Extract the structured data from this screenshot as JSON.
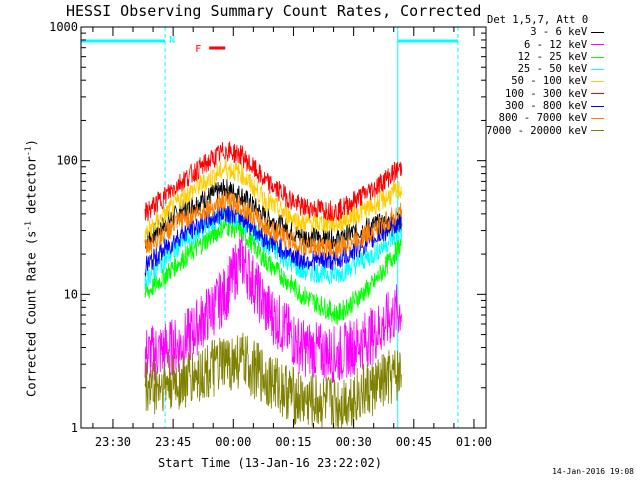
{
  "chart_data": {
    "type": "line",
    "title": "HESSI Observing Summary Count Rates, Corrected",
    "ylabel_prefix": "Corrected Count Rate (s",
    "ylabel_mid": " detector",
    "ylabel_suffix": ")",
    "ylabel_exp": "-1",
    "xlabel": "Start Time (13-Jan-16 23:22:02)",
    "y_scale": "log",
    "ylim": [
      1,
      1000
    ],
    "y_ticks": [
      {
        "value": 1,
        "label": "1"
      },
      {
        "value": 10,
        "label": "10"
      },
      {
        "value": 100,
        "label": "100"
      },
      {
        "value": 1000,
        "label": "1000"
      }
    ],
    "xlim": [
      "23:22:02",
      "01:03:00"
    ],
    "x_ticks": [
      {
        "value": "23:30",
        "label": "23:30"
      },
      {
        "value": "23:45",
        "label": "23:45"
      },
      {
        "value": "00:00",
        "label": "00:00"
      },
      {
        "value": "00:15",
        "label": "00:15"
      },
      {
        "value": "00:30",
        "label": "00:30"
      },
      {
        "value": "00:45",
        "label": "00:45"
      },
      {
        "value": "01:00",
        "label": "01:00"
      }
    ],
    "legend_title": "Det 1,5,7, Att 0",
    "legend_placement": "right",
    "series": [
      {
        "name": "3 - 6 keV",
        "color": "#000000",
        "x": [
          "23:38",
          "23:47",
          "23:58",
          "00:02",
          "00:08",
          "00:17",
          "00:26",
          "00:35",
          "00:42"
        ],
        "values": [
          25,
          42,
          62,
          55,
          38,
          27,
          26,
          33,
          35
        ]
      },
      {
        "name": "6 - 12 keV",
        "color": "#ff00ff",
        "x": [
          "23:38",
          "23:47",
          "23:58",
          "00:02",
          "00:08",
          "00:17",
          "00:26",
          "00:35",
          "00:42"
        ],
        "values": [
          3.5,
          4.2,
          10,
          19,
          8,
          4,
          3.5,
          5,
          8
        ]
      },
      {
        "name": "12 - 25 keV",
        "color": "#00ff00",
        "x": [
          "23:38",
          "23:47",
          "23:58",
          "00:02",
          "00:08",
          "00:17",
          "00:26",
          "00:35",
          "00:42"
        ],
        "values": [
          10,
          18,
          33,
          30,
          18,
          10,
          7,
          12,
          24
        ]
      },
      {
        "name": "25 - 50 keV",
        "color": "#00ffff",
        "x": [
          "23:38",
          "23:47",
          "23:58",
          "00:02",
          "00:08",
          "00:17",
          "00:26",
          "00:35",
          "00:42"
        ],
        "values": [
          13,
          24,
          40,
          36,
          24,
          15,
          14,
          20,
          30
        ]
      },
      {
        "name": "50 - 100 keV",
        "color": "#ffcc00",
        "x": [
          "23:38",
          "23:47",
          "23:58",
          "00:02",
          "00:08",
          "00:17",
          "00:26",
          "00:35",
          "00:42"
        ],
        "values": [
          28,
          52,
          88,
          80,
          50,
          34,
          34,
          46,
          62
        ]
      },
      {
        "name": "100 - 300 keV",
        "color": "#ff0000",
        "x": [
          "23:38",
          "23:47",
          "23:58",
          "00:02",
          "00:08",
          "00:17",
          "00:26",
          "00:35",
          "00:42"
        ],
        "values": [
          40,
          70,
          120,
          110,
          70,
          45,
          42,
          62,
          90
        ]
      },
      {
        "name": "300 - 800 keV",
        "color": "#0000ff",
        "x": [
          "23:38",
          "23:47",
          "23:58",
          "00:02",
          "00:08",
          "00:17",
          "00:26",
          "00:35",
          "00:42"
        ],
        "values": [
          16,
          28,
          42,
          38,
          26,
          18,
          18,
          26,
          36
        ]
      },
      {
        "name": "800 - 7000 keV",
        "color": "#ff8000",
        "x": [
          "23:38",
          "23:47",
          "23:58",
          "00:02",
          "00:08",
          "00:17",
          "00:26",
          "00:35",
          "00:42"
        ],
        "values": [
          22,
          36,
          50,
          46,
          32,
          23,
          22,
          30,
          42
        ]
      },
      {
        "name": "7000 - 20000 keV",
        "color": "#808000",
        "x": [
          "23:38",
          "23:47",
          "23:58",
          "00:02",
          "00:08",
          "00:17",
          "00:26",
          "00:35",
          "00:42"
        ],
        "values": [
          2,
          2.2,
          3,
          3.2,
          2.4,
          1.6,
          1.5,
          2,
          2.6
        ]
      }
    ],
    "annotations": {
      "night_label": "N",
      "flare_label": "F",
      "night_periods": [
        [
          "23:22:02",
          "23:43"
        ],
        [
          "00:41",
          "00:56"
        ]
      ],
      "flare_period": [
        "23:54",
        "23:58"
      ]
    }
  },
  "footer_date": "14-Jan-2016 19:08"
}
